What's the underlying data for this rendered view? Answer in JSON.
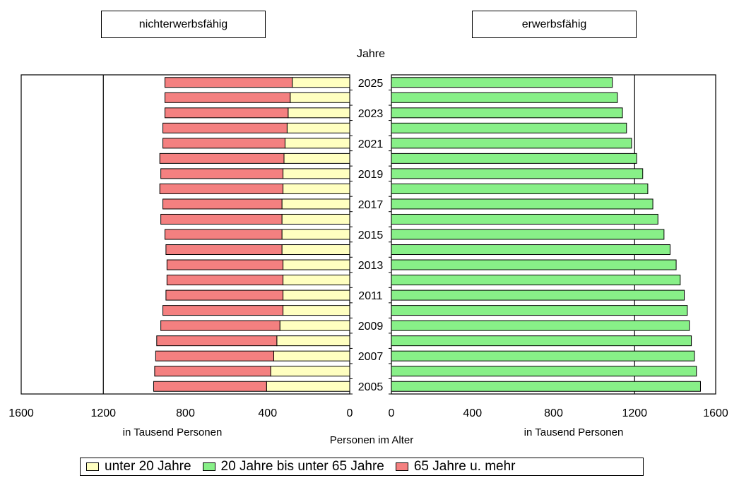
{
  "headers": {
    "left": "nichterwerbsfähig",
    "right": "erwerbsfähig"
  },
  "center_label": "Jahre",
  "unit_left": "in Tausend Personen",
  "unit_right": "in Tausend Personen",
  "center_axis_label": "Personen im Alter",
  "legend": [
    {
      "label": "unter 20 Jahre",
      "color": "#ffffc0"
    },
    {
      "label": "20 Jahre bis unter 65 Jahre",
      "color": "#88f088"
    },
    {
      "label": "65 Jahre u. mehr",
      "color": "#f48080"
    }
  ],
  "chart_data": {
    "type": "bar",
    "orientation": "horizontal",
    "stacked_left": true,
    "categories": [
      "2025",
      "2024",
      "2023",
      "2022",
      "2021",
      "2020",
      "2019",
      "2018",
      "2017",
      "2016",
      "2015",
      "2014",
      "2013",
      "2012",
      "2011",
      "2010",
      "2009",
      "2008",
      "2007",
      "2006",
      "2005"
    ],
    "year_labels_shown": [
      "2025",
      "2023",
      "2021",
      "2019",
      "2017",
      "2015",
      "2013",
      "2011",
      "2009",
      "2007",
      "2005"
    ],
    "left_xlim": [
      0,
      1600
    ],
    "right_xlim": [
      0,
      1600
    ],
    "left_ticks": [
      "1600",
      "1200",
      "800",
      "400",
      "0"
    ],
    "right_ticks": [
      "0",
      "400",
      "800",
      "1200",
      "1600"
    ],
    "left_gridline": 1200,
    "right_gridline": 1200,
    "series": [
      {
        "name": "unter 20 Jahre",
        "side": "left",
        "values": [
          280,
          290,
          300,
          305,
          315,
          320,
          325,
          325,
          330,
          330,
          330,
          330,
          325,
          325,
          325,
          325,
          340,
          355,
          370,
          385,
          405
        ]
      },
      {
        "name": "65 Jahre u. mehr",
        "side": "left",
        "values": [
          620,
          610,
          600,
          605,
          595,
          605,
          595,
          600,
          580,
          590,
          570,
          565,
          565,
          565,
          570,
          585,
          580,
          585,
          575,
          565,
          550
        ]
      },
      {
        "name": "20 Jahre bis unter 65 Jahre",
        "side": "right",
        "values": [
          1090,
          1115,
          1140,
          1160,
          1185,
          1210,
          1240,
          1265,
          1290,
          1315,
          1345,
          1375,
          1405,
          1425,
          1445,
          1460,
          1470,
          1480,
          1495,
          1505,
          1525
        ]
      }
    ]
  }
}
